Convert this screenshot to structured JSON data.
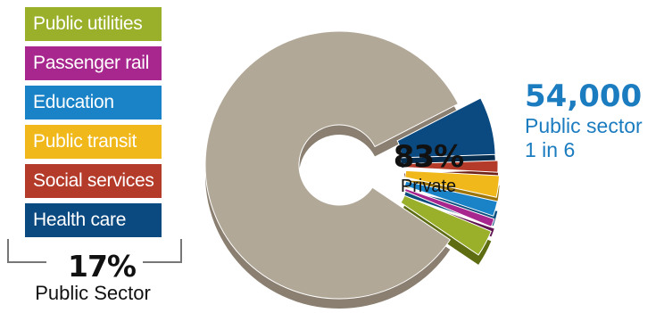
{
  "chart_data": {
    "type": "pie",
    "title": "",
    "series": [
      {
        "slices": [
          {
            "label": "Private",
            "value": 83,
            "display": "83%",
            "color": "#b2a898",
            "dark": "#8a7f70"
          },
          {
            "label": "Health care",
            "value": 7.0,
            "color": "#0b4a80",
            "dark": "#062c4e"
          },
          {
            "label": "Social services",
            "value": 1.4,
            "color": "#b43a2a",
            "dark": "#6e2016"
          },
          {
            "label": "Public transit",
            "value": 2.6,
            "color": "#f0b81a",
            "dark": "#9c7408"
          },
          {
            "label": "Education",
            "value": 1.8,
            "color": "#1a83c8",
            "dark": "#0c4f7e"
          },
          {
            "label": "Passenger rail",
            "value": 1.0,
            "color": "#a8278e",
            "dark": "#601452"
          },
          {
            "label": "Public utilities",
            "value": 3.2,
            "color": "#9bb02a",
            "dark": "#5e6c12"
          }
        ]
      }
    ],
    "public_total": {
      "value": 17,
      "display": "17%",
      "label": "Public Sector"
    },
    "private_label": "Private"
  },
  "legend": [
    {
      "label": "Public utilities",
      "color": "#9bb02a"
    },
    {
      "label": "Passenger rail",
      "color": "#a8278e"
    },
    {
      "label": "Education",
      "color": "#1a83c8"
    },
    {
      "label": "Public transit",
      "color": "#f0b81a"
    },
    {
      "label": "Social services",
      "color": "#b43a2a"
    },
    {
      "label": "Health care",
      "color": "#0b4a80"
    }
  ],
  "stat": {
    "value": "54,000",
    "line1": "Public sector",
    "line2": "1 in 6"
  }
}
